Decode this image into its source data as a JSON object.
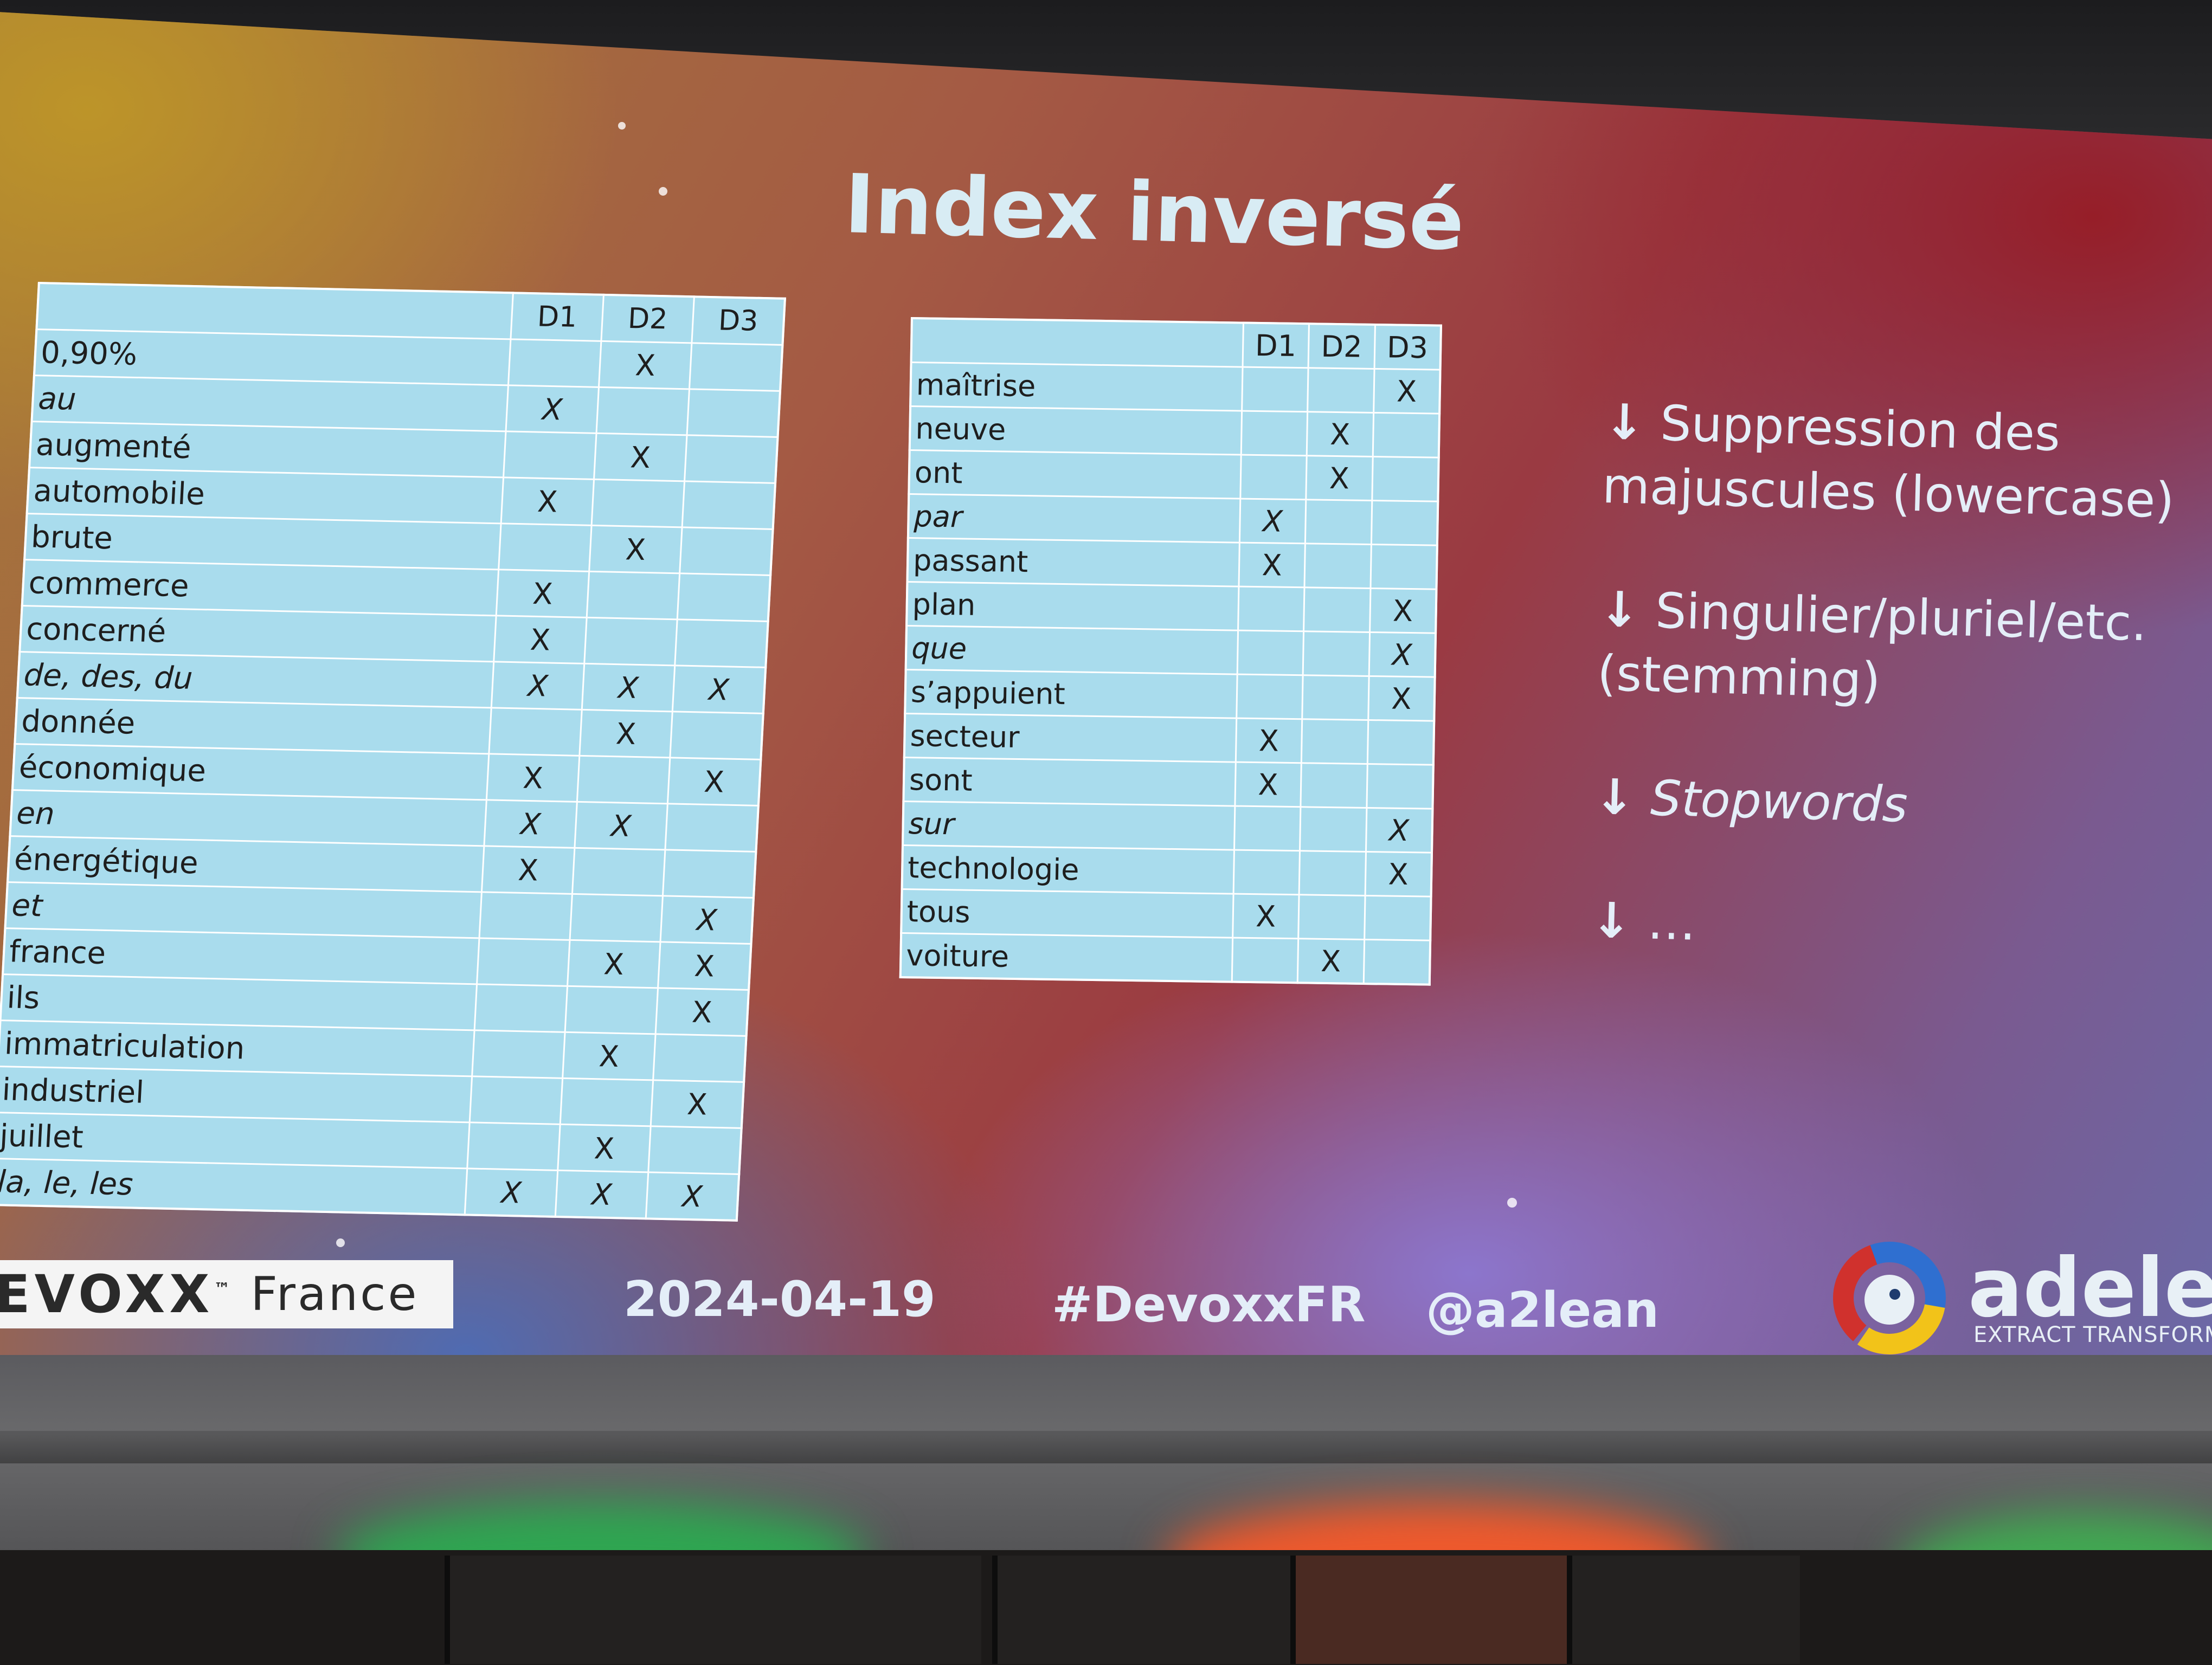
{
  "slide": {
    "title": "Index inversé",
    "columns": [
      "D1",
      "D2",
      "D3"
    ],
    "left_table": [
      {
        "term": "0,90%",
        "italic": false,
        "d1": "",
        "d2": "X",
        "d3": ""
      },
      {
        "term": "au",
        "italic": true,
        "d1": "X",
        "d2": "",
        "d3": ""
      },
      {
        "term": "augmenté",
        "italic": false,
        "d1": "",
        "d2": "X",
        "d3": ""
      },
      {
        "term": "automobile",
        "italic": false,
        "d1": "X",
        "d2": "",
        "d3": ""
      },
      {
        "term": "brute",
        "italic": false,
        "d1": "",
        "d2": "X",
        "d3": ""
      },
      {
        "term": "commerce",
        "italic": false,
        "d1": "X",
        "d2": "",
        "d3": ""
      },
      {
        "term": "concerné",
        "italic": false,
        "d1": "X",
        "d2": "",
        "d3": ""
      },
      {
        "term": "de, des, du",
        "italic": true,
        "d1": "X",
        "d2": "X",
        "d3": "X"
      },
      {
        "term": "donnée",
        "italic": false,
        "d1": "",
        "d2": "X",
        "d3": ""
      },
      {
        "term": "économique",
        "italic": false,
        "d1": "X",
        "d2": "",
        "d3": "X"
      },
      {
        "term": "en",
        "italic": true,
        "d1": "X",
        "d2": "X",
        "d3": ""
      },
      {
        "term": "énergétique",
        "italic": false,
        "d1": "X",
        "d2": "",
        "d3": ""
      },
      {
        "term": "et",
        "italic": true,
        "d1": "",
        "d2": "",
        "d3": "X"
      },
      {
        "term": "france",
        "italic": false,
        "d1": "",
        "d2": "X",
        "d3": "X"
      },
      {
        "term": "ils",
        "italic": false,
        "d1": "",
        "d2": "",
        "d3": "X"
      },
      {
        "term": "immatriculation",
        "italic": false,
        "d1": "",
        "d2": "X",
        "d3": ""
      },
      {
        "term": "industriel",
        "italic": false,
        "d1": "",
        "d2": "",
        "d3": "X"
      },
      {
        "term": "juillet",
        "italic": false,
        "d1": "",
        "d2": "X",
        "d3": ""
      },
      {
        "term": "la, le, les",
        "italic": true,
        "d1": "X",
        "d2": "X",
        "d3": "X"
      }
    ],
    "right_table": [
      {
        "term": "maîtrise",
        "italic": false,
        "d1": "",
        "d2": "",
        "d3": "X"
      },
      {
        "term": "neuve",
        "italic": false,
        "d1": "",
        "d2": "X",
        "d3": ""
      },
      {
        "term": "ont",
        "italic": false,
        "d1": "",
        "d2": "X",
        "d3": ""
      },
      {
        "term": "par",
        "italic": true,
        "d1": "X",
        "d2": "",
        "d3": ""
      },
      {
        "term": "passant",
        "italic": false,
        "d1": "X",
        "d2": "",
        "d3": ""
      },
      {
        "term": "plan",
        "italic": false,
        "d1": "",
        "d2": "",
        "d3": "X"
      },
      {
        "term": "que",
        "italic": true,
        "d1": "",
        "d2": "",
        "d3": "X"
      },
      {
        "term": "s’appuient",
        "italic": false,
        "d1": "",
        "d2": "",
        "d3": "X"
      },
      {
        "term": "secteur",
        "italic": false,
        "d1": "X",
        "d2": "",
        "d3": ""
      },
      {
        "term": "sont",
        "italic": false,
        "d1": "X",
        "d2": "",
        "d3": ""
      },
      {
        "term": "sur",
        "italic": true,
        "d1": "",
        "d2": "",
        "d3": "X"
      },
      {
        "term": "technologie",
        "italic": false,
        "d1": "",
        "d2": "",
        "d3": "X"
      },
      {
        "term": "tous",
        "italic": false,
        "d1": "X",
        "d2": "",
        "d3": ""
      },
      {
        "term": "voiture",
        "italic": false,
        "d1": "",
        "d2": "X",
        "d3": ""
      }
    ],
    "bullets": [
      {
        "arrow": "↓",
        "text": "Suppression des majuscules (lowercase)",
        "italic": false
      },
      {
        "arrow": "↓",
        "text": "Singulier/pluriel/etc. (stemming)",
        "italic": false
      },
      {
        "arrow": "↓",
        "text": "Stopwords",
        "italic": true
      },
      {
        "arrow": "↓",
        "text": "…",
        "italic": false
      }
    ],
    "footer": {
      "devoxx_logo": "EVOXX",
      "devoxx_tm": "™",
      "devoxx_country": "France",
      "date": "2024-04-19",
      "hashtag": "#DevoxxFR",
      "handle": "@a2lean",
      "company": "adelea",
      "company_tagline": "EXTRACT TRANSFORM SE"
    }
  },
  "colors": {
    "table_fill": "#a9dced",
    "table_border": "#ffffff",
    "title": "#d8ecf4",
    "devoxx_gold": "#c9a41d",
    "logo_red": "#d0312d",
    "logo_blue": "#2f6fd0",
    "logo_yellow": "#f2c319"
  }
}
